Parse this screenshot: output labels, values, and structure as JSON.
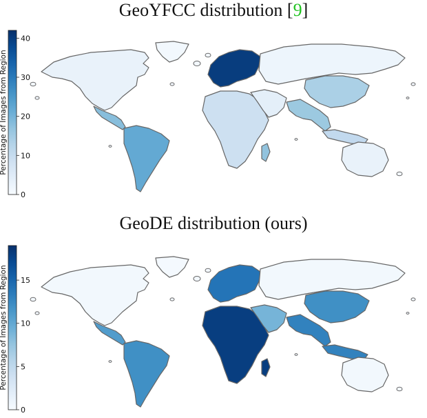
{
  "maps": [
    {
      "title": "GeoYFCC distribution [",
      "title_cite": "9",
      "title_close": "]",
      "colorbar": {
        "label": "Percentage of Images from Region",
        "ticks": [
          "0",
          "10",
          "20",
          "30",
          "40"
        ],
        "tick_values": [
          0,
          10,
          20,
          30,
          40
        ],
        "max": 42
      },
      "regions": {
        "north-america": 3,
        "greenland": 1,
        "central-america": 18,
        "south-america": 22,
        "europe": 40,
        "africa": 9,
        "middle-east": 4,
        "asia": 2,
        "china": 14,
        "southeast-asia": 16,
        "indonesia": 11,
        "australia": 3,
        "madagascar": 17
      }
    },
    {
      "title": "GeoDE distribution (ours)",
      "colorbar": {
        "label": "Percentage of Images from Region",
        "ticks": [
          "0",
          "5",
          "10",
          "15"
        ],
        "tick_values": [
          0,
          5,
          10,
          15
        ],
        "max": 19
      },
      "regions": {
        "north-america": 0.5,
        "greenland": 0.3,
        "central-america": 11,
        "south-america": 12,
        "europe": 14,
        "africa": 18,
        "middle-east": 9,
        "asia": 0.5,
        "china": 12,
        "southeast-asia": 13,
        "indonesia": 13,
        "australia": 0.5,
        "madagascar": 18
      }
    }
  ],
  "colors": {
    "low": "#f7fbff",
    "high": "#08306b",
    "border": "#666666"
  }
}
